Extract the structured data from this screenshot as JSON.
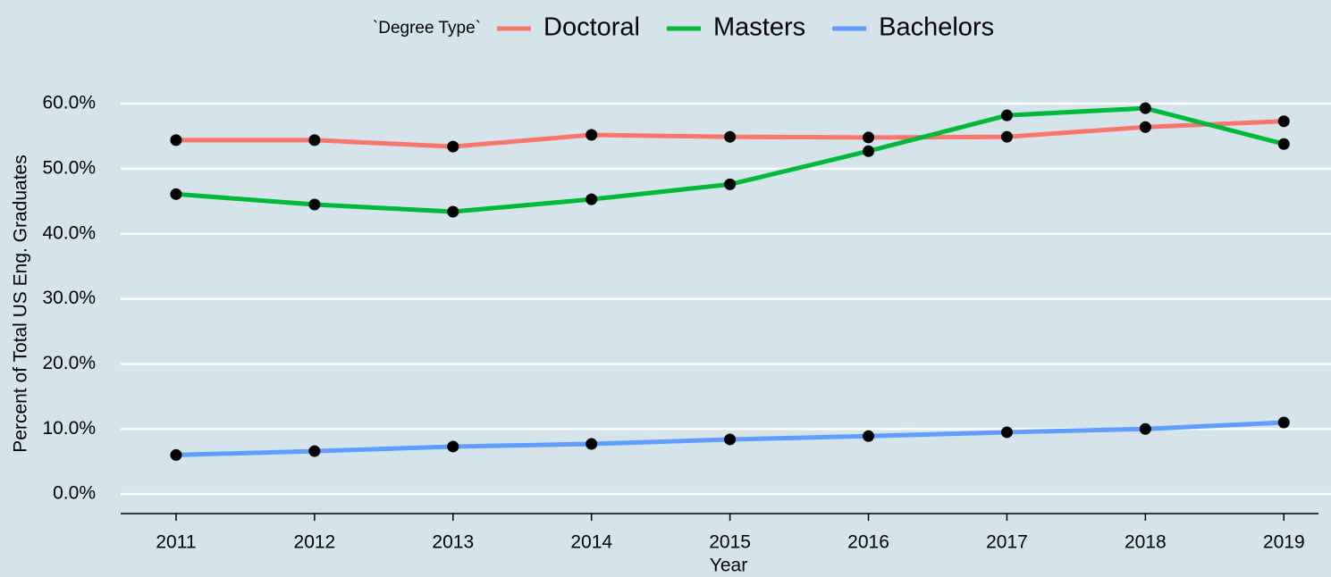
{
  "chart_data": {
    "type": "line",
    "legend_title": "`Degree Type`",
    "x_label": "Year",
    "y_label": "Percent of Total US Eng. Graduates",
    "x": [
      2011,
      2012,
      2013,
      2014,
      2015,
      2016,
      2017,
      2018,
      2019
    ],
    "series": [
      {
        "name": "Doctoral",
        "color": "#f8766d",
        "values": [
          54.4,
          54.4,
          53.4,
          55.2,
          54.9,
          54.8,
          54.9,
          56.4,
          57.3
        ]
      },
      {
        "name": "Masters",
        "color": "#00ba38",
        "values": [
          46.1,
          44.5,
          43.4,
          45.3,
          47.6,
          52.7,
          58.2,
          59.3,
          53.8
        ]
      },
      {
        "name": "Bachelors",
        "color": "#619cff",
        "values": [
          6.0,
          6.6,
          7.3,
          7.7,
          8.4,
          8.9,
          9.5,
          10.0,
          11.0
        ]
      }
    ],
    "xlim": [
      2010.6,
      2019.25
    ],
    "xticks": [
      2011,
      2012,
      2013,
      2014,
      2015,
      2016,
      2017,
      2018,
      2019
    ],
    "ylim": [
      -3,
      63
    ],
    "yticks": [
      {
        "value": 0,
        "label": "0.0%"
      },
      {
        "value": 10,
        "label": "10.0%"
      },
      {
        "value": 20,
        "label": "20.0%"
      },
      {
        "value": 30,
        "label": "30.0%"
      },
      {
        "value": 40,
        "label": "40.0%"
      },
      {
        "value": 50,
        "label": "50.0%"
      },
      {
        "value": 60,
        "label": "60.0%"
      }
    ],
    "grid": true,
    "legend": "top",
    "point_color": "#000000"
  }
}
